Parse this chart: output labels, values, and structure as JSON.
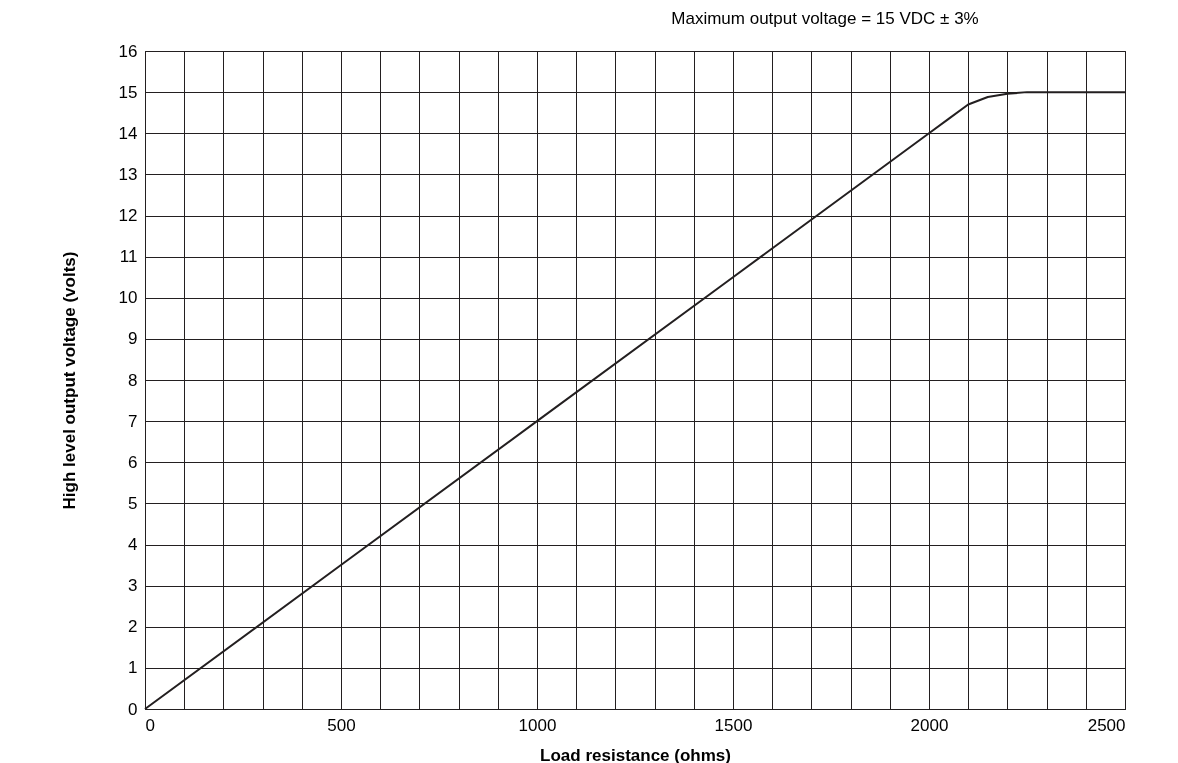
{
  "chart_data": {
    "type": "line",
    "title": "Maximum output voltage = 15 VDC ± 3%",
    "xlabel": "Load resistance (ohms)",
    "ylabel": "High level output voltage (volts)",
    "x": [
      0,
      500,
      1000,
      1500,
      2000,
      2050,
      2100,
      2150,
      2200,
      2250,
      2300,
      2500
    ],
    "series": [
      {
        "color": "#231f20",
        "values": [
          0,
          3.5,
          7,
          10.5,
          14,
          14.35,
          14.7,
          14.88,
          14.96,
          15,
          15,
          15
        ]
      }
    ],
    "xlim": [
      0,
      2500
    ],
    "ylim": [
      0,
      16
    ],
    "xticks": [
      0,
      {
        "value": 100,
        "label": null
      },
      {
        "value": 200,
        "label": null
      },
      {
        "value": 300,
        "label": null
      },
      {
        "value": 400,
        "label": null
      },
      500,
      {
        "value": 600,
        "label": null
      },
      {
        "value": 700,
        "label": null
      },
      {
        "value": 800,
        "label": null
      },
      {
        "value": 900,
        "label": null
      },
      1000,
      {
        "value": 1100,
        "label": null
      },
      {
        "value": 1200,
        "label": null
      },
      {
        "value": 1300,
        "label": null
      },
      {
        "value": 1400,
        "label": null
      },
      1500,
      {
        "value": 1600,
        "label": null
      },
      {
        "value": 1700,
        "label": null
      },
      {
        "value": 1800,
        "label": null
      },
      {
        "value": 1900,
        "label": null
      },
      2000,
      {
        "value": 2100,
        "label": null
      },
      {
        "value": 2200,
        "label": null
      },
      {
        "value": 2300,
        "label": null
      },
      {
        "value": 2400,
        "label": null
      },
      2500
    ],
    "yticks": [
      0,
      1,
      2,
      3,
      4,
      5,
      6,
      7,
      8,
      9,
      10,
      11,
      12,
      13,
      14,
      15,
      16
    ],
    "grid": true,
    "legend": false,
    "marker": "none",
    "line_style": "solid"
  }
}
